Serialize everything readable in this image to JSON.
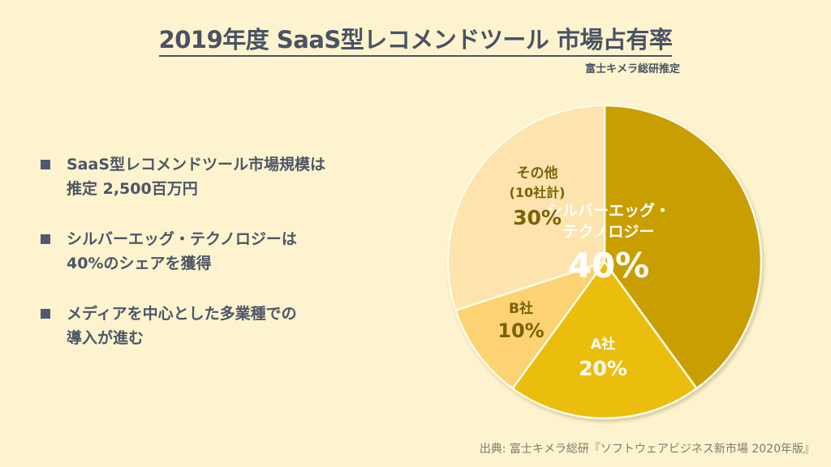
{
  "title": "2019年度 SaaS型レコメンドツール 市場占有率",
  "subtitle": "富士キメラ総研推定",
  "bullets": [
    {
      "lines": [
        "SaaS型レコメンドツール市場規模は",
        "推定 2,500百万円"
      ]
    },
    {
      "lines": [
        "シルバーエッグ・テクノロジーは",
        "40%のシェアを獲得"
      ]
    },
    {
      "lines": [
        "メディアを中心とした多業種での",
        "導入が進む"
      ]
    }
  ],
  "source": "出典: 富士キメラ総研『ソフトウェアビジネス新市場 2020年版』",
  "colors": {
    "background": "#fdf4cf",
    "silver_egg": "#c99e06",
    "a_company": "#ebbd08",
    "b_company": "#fcd273",
    "others": "#fde3ae",
    "dark_label": "#7a6208",
    "light_label": "#ffffff",
    "text": "#4d5666"
  },
  "chart_data": {
    "type": "pie",
    "title": "2019年度 SaaS型レコメンドツール 市場占有率",
    "subtitle": "富士キメラ総研推定",
    "start_angle": "12 o'clock",
    "direction": "clockwise",
    "slices": [
      {
        "label": "シルバーエッグ・テクノロジー",
        "label_lines": [
          "シルバーエッグ・",
          "テクノロジー"
        ],
        "value": 40,
        "pct_text": "40%",
        "color": "#c99e06"
      },
      {
        "label": "A社",
        "label_lines": [
          "A社"
        ],
        "value": 20,
        "pct_text": "20%",
        "color": "#ebbd08"
      },
      {
        "label": "B社",
        "label_lines": [
          "B社"
        ],
        "value": 10,
        "pct_text": "10%",
        "color": "#fcd273"
      },
      {
        "label": "その他 (10社計)",
        "label_lines": [
          "その他",
          "(10社計)"
        ],
        "value": 30,
        "pct_text": "30%",
        "color": "#fde3ae"
      }
    ],
    "legend": "none (labels inside slices)"
  }
}
